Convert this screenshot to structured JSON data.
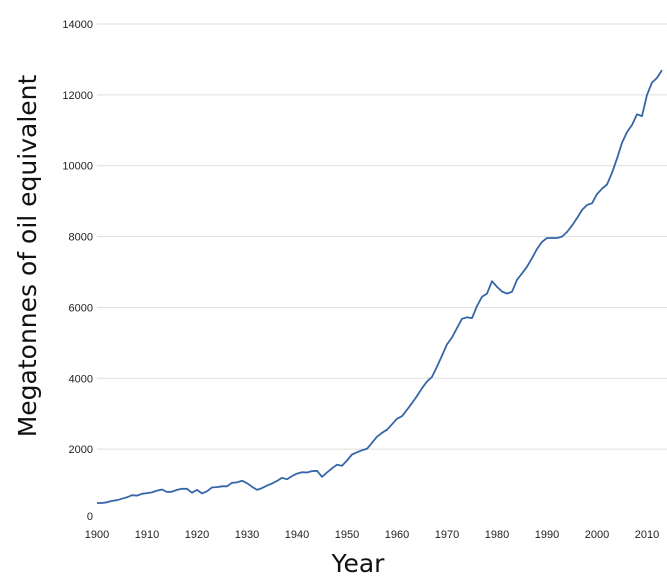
{
  "chart_data": {
    "type": "line",
    "title": "",
    "xlabel": "Year",
    "ylabel": "Megatonnes of oil equivalent",
    "xlim": [
      1900,
      2013
    ],
    "ylim": [
      0,
      14000
    ],
    "grid": true,
    "x_ticks": [
      "1900",
      "1910",
      "1920",
      "1930",
      "1940",
      "1950",
      "1960",
      "1970",
      "1980",
      "1990",
      "2000",
      "2010"
    ],
    "y_ticks": [
      "0",
      "2000",
      "4000",
      "6000",
      "8000",
      "10000",
      "12000",
      "14000"
    ],
    "colors": {
      "line": "#3566a8",
      "grid": "#dedede"
    },
    "series": [
      {
        "x": [
          1900,
          1901,
          1902,
          1903,
          1904,
          1905,
          1906,
          1907,
          1908,
          1909,
          1910,
          1911,
          1912,
          1913,
          1914,
          1915,
          1916,
          1917,
          1918,
          1919,
          1920,
          1921,
          1922,
          1923,
          1924,
          1925,
          1926,
          1927,
          1928,
          1929,
          1930,
          1931,
          1932,
          1933,
          1934,
          1935,
          1936,
          1937,
          1938,
          1939,
          1940,
          1941,
          1942,
          1943,
          1944,
          1945,
          1946,
          1947,
          1948,
          1949,
          1950,
          1951,
          1952,
          1953,
          1954,
          1955,
          1956,
          1957,
          1958,
          1959,
          1960,
          1961,
          1962,
          1963,
          1964,
          1965,
          1966,
          1967,
          1968,
          1969,
          1970,
          1971,
          1972,
          1973,
          1974,
          1975,
          1976,
          1977,
          1978,
          1979,
          1980,
          1981,
          1982,
          1983,
          1984,
          1985,
          1986,
          1987,
          1988,
          1989,
          1990,
          1991,
          1992,
          1993,
          1994,
          1995,
          1996,
          1997,
          1998,
          1999,
          2000,
          2001,
          2002,
          2003,
          2004,
          2005,
          2006,
          2007,
          2008,
          2009,
          2010,
          2011,
          2012,
          2013
        ],
        "values": [
          480,
          480,
          500,
          540,
          560,
          600,
          640,
          700,
          690,
          740,
          760,
          780,
          830,
          860,
          790,
          800,
          850,
          880,
          880,
          770,
          850,
          750,
          810,
          920,
          930,
          950,
          950,
          1050,
          1060,
          1110,
          1040,
          940,
          850,
          900,
          970,
          1030,
          1100,
          1190,
          1150,
          1240,
          1310,
          1350,
          1340,
          1380,
          1390,
          1220,
          1340,
          1460,
          1560,
          1530,
          1680,
          1850,
          1910,
          1970,
          2010,
          2180,
          2350,
          2460,
          2550,
          2700,
          2860,
          2930,
          3110,
          3300,
          3500,
          3720,
          3910,
          4040,
          4330,
          4640,
          4960,
          5150,
          5420,
          5680,
          5720,
          5700,
          6040,
          6300,
          6390,
          6740,
          6580,
          6450,
          6390,
          6440,
          6780,
          6960,
          7150,
          7390,
          7650,
          7850,
          7960,
          7960,
          7960,
          8000,
          8130,
          8310,
          8520,
          8750,
          8890,
          8940,
          9200,
          9350,
          9470,
          9800,
          10200,
          10650,
          10950,
          11150,
          11450,
          11400,
          12000,
          12350,
          12480,
          12700
        ]
      }
    ]
  }
}
